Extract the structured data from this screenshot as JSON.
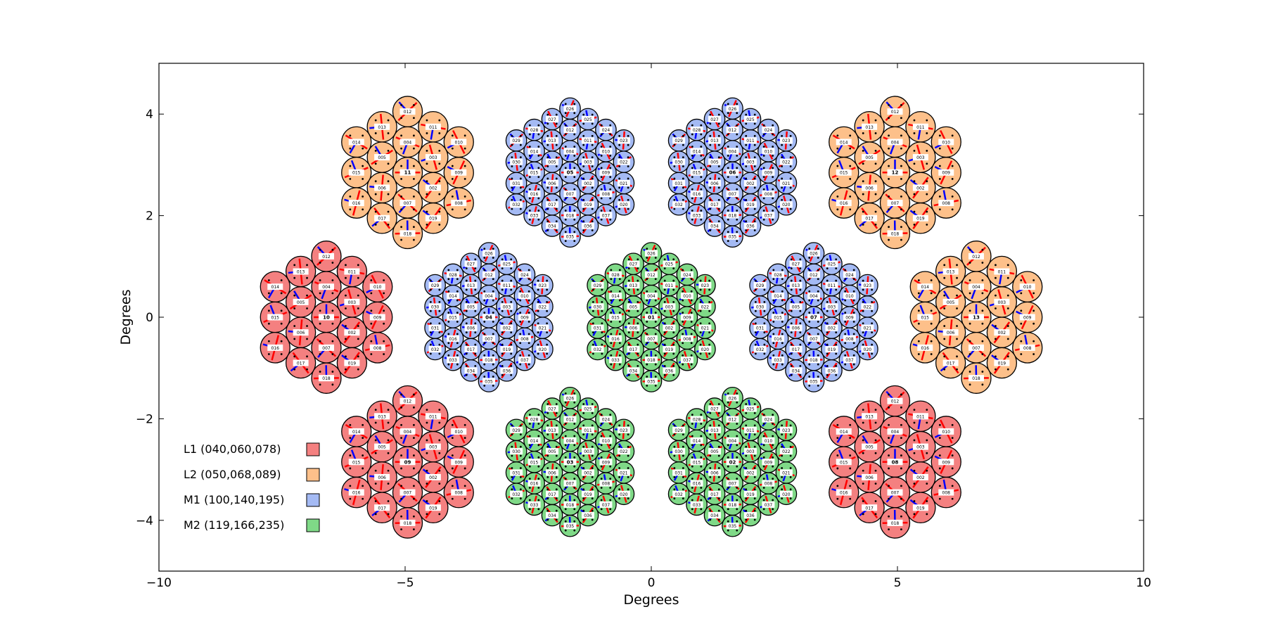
{
  "chart_data": {
    "type": "scatter",
    "title": "",
    "xlabel": "Degrees",
    "ylabel": "Degrees",
    "xlim": [
      -10,
      10
    ],
    "ylim": [
      -5,
      5
    ],
    "x_ticks": [
      "−10",
      "−5",
      "0",
      "5",
      "10"
    ],
    "y_ticks": [
      "4",
      "2",
      "0",
      "−2",
      "−4"
    ],
    "grid": false,
    "legend_placement": "lower-left",
    "detector_radius_deg": 0.3,
    "legend": [
      {
        "key": "L1",
        "label": "L1 (040,060,078)",
        "color": "#f48080"
      },
      {
        "key": "L2",
        "label": "L2 (050,068,089)",
        "color": "#fdc08a"
      },
      {
        "key": "M1",
        "label": "M1 (100,140,195)",
        "color": "#a4baf4"
      },
      {
        "key": "M2",
        "label": "M2 (119,166,235)",
        "color": "#7fd987"
      }
    ],
    "modules": [
      {
        "id": "01",
        "band": "M2",
        "x": 0.0,
        "y": 0.0,
        "size": "small"
      },
      {
        "id": "02",
        "band": "M2",
        "x": 1.65,
        "y": -2.85,
        "size": "small"
      },
      {
        "id": "03",
        "band": "M2",
        "x": -1.65,
        "y": -2.85,
        "size": "small"
      },
      {
        "id": "04",
        "band": "M1",
        "x": -3.3,
        "y": 0.0,
        "size": "small"
      },
      {
        "id": "05",
        "band": "M1",
        "x": -1.65,
        "y": 2.85,
        "size": "small"
      },
      {
        "id": "06",
        "band": "M1",
        "x": 1.65,
        "y": 2.85,
        "size": "small"
      },
      {
        "id": "07",
        "band": "M1",
        "x": 3.3,
        "y": 0.0,
        "size": "small"
      },
      {
        "id": "08",
        "band": "L1",
        "x": 4.95,
        "y": -2.85,
        "size": "large"
      },
      {
        "id": "09",
        "band": "L1",
        "x": -4.95,
        "y": -2.85,
        "size": "large"
      },
      {
        "id": "10",
        "band": "L1",
        "x": -6.6,
        "y": 0.0,
        "size": "large"
      },
      {
        "id": "11",
        "band": "L2",
        "x": -4.95,
        "y": 2.85,
        "size": "large"
      },
      {
        "id": "12",
        "band": "L2",
        "x": 4.95,
        "y": 2.85,
        "size": "large"
      },
      {
        "id": "13",
        "band": "L2",
        "x": 6.6,
        "y": 0.0,
        "size": "large"
      }
    ],
    "colors": {
      "arrow_red": "#ff0000",
      "arrow_blue": "#0000ff",
      "outline": "#000000",
      "dot": "#000000"
    }
  }
}
